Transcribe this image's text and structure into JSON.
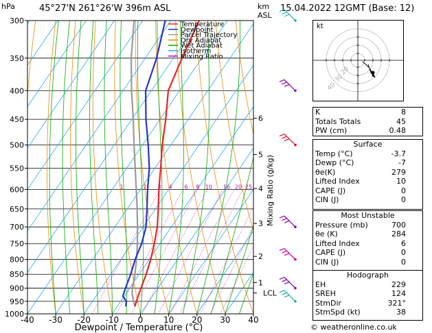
{
  "header": {
    "location": "45°27'N  261°26'W  396m  ASL",
    "datetime": "15.04.2022  12GMT  (Base: 12)",
    "p_unit": "hPa",
    "km_unit": "km",
    "asl_unit": "ASL"
  },
  "chart_data": {
    "type": "skew-t",
    "xlabel": "Dewpoint / Temperature (°C)",
    "ylabel_right": "Mixing Ratio (g/kg)",
    "pressure_ticks": [
      300,
      350,
      400,
      450,
      500,
      550,
      600,
      650,
      700,
      750,
      800,
      850,
      900,
      950,
      1000
    ],
    "temp_ticks": [
      -40,
      -30,
      -20,
      -10,
      0,
      10,
      20,
      30,
      40
    ],
    "km_ticks": [
      {
        "label": "1",
        "p": 880
      },
      {
        "label": "2",
        "p": 790
      },
      {
        "label": "3",
        "p": 690
      },
      {
        "label": "4",
        "p": 598
      },
      {
        "label": "5",
        "p": 520
      },
      {
        "label": "6",
        "p": 448
      }
    ],
    "lcl": {
      "label": "LCL",
      "p": 918
    },
    "mixing_ratio_labels": [
      "1",
      "2",
      "3",
      "4",
      "6",
      "8",
      "10",
      "16",
      "20",
      "25"
    ],
    "mixing_ratio_values": [
      1,
      2,
      3,
      4,
      6,
      8,
      10,
      16,
      20,
      25
    ],
    "legend": [
      {
        "name": "Temperature",
        "color": "#ee2222"
      },
      {
        "name": "Dewpoint",
        "color": "#2233cc"
      },
      {
        "name": "Parcel Trajectory",
        "color": "#999999"
      },
      {
        "name": "Dry Adiabat",
        "color": "#ee8800"
      },
      {
        "name": "Wet Adiabat",
        "color": "#00aa00"
      },
      {
        "name": "Isotherm",
        "color": "#22aaee"
      },
      {
        "name": "Mixing Ratio",
        "color": "#cc00aa"
      }
    ],
    "temperature": [
      [
        970,
        -3.7
      ],
      [
        950,
        -4.5
      ],
      [
        900,
        -6.0
      ],
      [
        850,
        -7.5
      ],
      [
        800,
        -9.5
      ],
      [
        750,
        -12
      ],
      [
        700,
        -15
      ],
      [
        650,
        -19
      ],
      [
        600,
        -23.5
      ],
      [
        550,
        -28
      ],
      [
        500,
        -33
      ],
      [
        450,
        -38
      ],
      [
        400,
        -44
      ],
      [
        350,
        -47
      ],
      [
        300,
        -50
      ]
    ],
    "dewpoint": [
      [
        970,
        -7
      ],
      [
        950,
        -8
      ],
      [
        930,
        -10.5
      ],
      [
        900,
        -11.5
      ],
      [
        850,
        -13
      ],
      [
        800,
        -15
      ],
      [
        750,
        -16.5
      ],
      [
        700,
        -19
      ],
      [
        650,
        -23
      ],
      [
        600,
        -27.5
      ],
      [
        550,
        -32
      ],
      [
        500,
        -38
      ],
      [
        450,
        -45
      ],
      [
        400,
        -52
      ],
      [
        350,
        -56
      ],
      [
        300,
        -62
      ]
    ],
    "parcel": [
      [
        970,
        -3.7
      ],
      [
        950,
        -5.5
      ],
      [
        918,
        -8
      ],
      [
        900,
        -9
      ],
      [
        850,
        -11.5
      ],
      [
        800,
        -14.5
      ],
      [
        750,
        -18
      ],
      [
        700,
        -22
      ],
      [
        650,
        -26.5
      ],
      [
        600,
        -31.5
      ],
      [
        550,
        -37
      ],
      [
        500,
        -43
      ],
      [
        450,
        -49.5
      ],
      [
        400,
        -57
      ],
      [
        350,
        -65
      ],
      [
        300,
        -73
      ]
    ],
    "wind_barb_pressures": [
      300,
      400,
      500,
      700,
      800,
      900,
      950
    ],
    "xlim": [
      -40,
      40
    ],
    "ylim": [
      1000,
      300
    ]
  },
  "hodograph": {
    "unit_label": "kt",
    "ring_labels": [
      "40",
      "30",
      "20"
    ]
  },
  "indices": [
    {
      "label": "K",
      "value": "8"
    },
    {
      "label": "Totals Totals",
      "value": "45"
    },
    {
      "label": "PW (cm)",
      "value": "0.48"
    }
  ],
  "surface": {
    "title": "Surface",
    "rows": [
      {
        "label": "Temp (°C)",
        "value": "-3.7"
      },
      {
        "label": "Dewp (°C)",
        "value": "-7"
      },
      {
        "label": "θe(K)",
        "value": "279"
      },
      {
        "label": "Lifted Index",
        "value": "10"
      },
      {
        "label": "CAPE (J)",
        "value": "0"
      },
      {
        "label": "CIN (J)",
        "value": "0"
      }
    ]
  },
  "most_unstable": {
    "title": "Most Unstable",
    "rows": [
      {
        "label": "Pressure (mb)",
        "value": "700"
      },
      {
        "label": "θe (K)",
        "value": "284"
      },
      {
        "label": "Lifted Index",
        "value": "6"
      },
      {
        "label": "CAPE (J)",
        "value": "0"
      },
      {
        "label": "CIN (J)",
        "value": "0"
      }
    ]
  },
  "hodograph_table": {
    "title": "Hodograph",
    "rows": [
      {
        "label": "EH",
        "value": "229"
      },
      {
        "label": "SREH",
        "value": "124"
      },
      {
        "label": "StmDir",
        "value": "321°"
      },
      {
        "label": "StmSpd (kt)",
        "value": "38"
      }
    ]
  },
  "footer": {
    "credit": "© weatheronline.co.uk"
  }
}
